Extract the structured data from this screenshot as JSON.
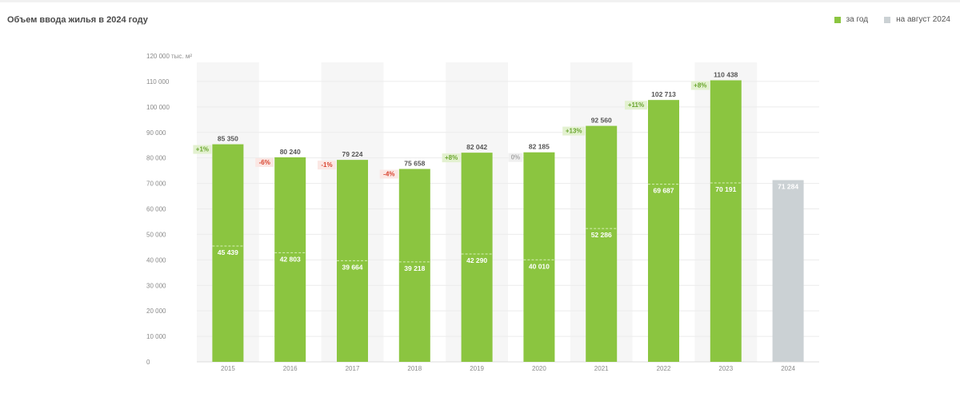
{
  "title": "Объем ввода жилья в 2024 году",
  "legend": {
    "year_label": "за год",
    "year_color": "#8bc540",
    "august_label": "на август 2024",
    "august_color": "#cbd1d4"
  },
  "chart_data": {
    "type": "bar",
    "unit_label": "тыс. м²",
    "ylim": [
      0,
      120000
    ],
    "y_ticks": [
      {
        "value": 0,
        "label": "0"
      },
      {
        "value": 10000,
        "label": "10 000"
      },
      {
        "value": 20000,
        "label": "20 000"
      },
      {
        "value": 30000,
        "label": "30 000"
      },
      {
        "value": 40000,
        "label": "40 000"
      },
      {
        "value": 50000,
        "label": "50 000"
      },
      {
        "value": 60000,
        "label": "60 000"
      },
      {
        "value": 70000,
        "label": "70 000"
      },
      {
        "value": 80000,
        "label": "80 000"
      },
      {
        "value": 90000,
        "label": "90 000"
      },
      {
        "value": 100000,
        "label": "100 000"
      },
      {
        "value": 110000,
        "label": "110 000"
      },
      {
        "value": 120000,
        "label": "120 000"
      }
    ],
    "categories": [
      "2015",
      "2016",
      "2017",
      "2018",
      "2019",
      "2020",
      "2021",
      "2022",
      "2023",
      "2024"
    ],
    "series": [
      {
        "name": "за год",
        "values": [
          85350,
          80240,
          79224,
          75658,
          82042,
          82185,
          92560,
          102713,
          110438,
          null
        ],
        "labels": [
          "85 350",
          "80 240",
          "79 224",
          "75 658",
          "82 042",
          "82 185",
          "92 560",
          "102 713",
          "110 438",
          ""
        ]
      },
      {
        "name": "на август 2024",
        "values": [
          45439,
          42803,
          39664,
          39218,
          42290,
          40010,
          52286,
          69687,
          70191,
          71284
        ],
        "labels": [
          "45 439",
          "42 803",
          "39 664",
          "39 218",
          "42 290",
          "40 010",
          "52 286",
          "69 687",
          "70 191",
          "71 284"
        ]
      }
    ],
    "changes": [
      {
        "label": "+1%",
        "dir": "up"
      },
      {
        "label": "-6%",
        "dir": "down"
      },
      {
        "label": "-1%",
        "dir": "down"
      },
      {
        "label": "-4%",
        "dir": "down"
      },
      {
        "label": "+8%",
        "dir": "up"
      },
      {
        "label": "0%",
        "dir": "flat"
      },
      {
        "label": "+13%",
        "dir": "up"
      },
      {
        "label": "+11%",
        "dir": "up"
      },
      {
        "label": "+8%",
        "dir": "up"
      },
      {
        "label": "",
        "dir": "none"
      }
    ],
    "grid": true,
    "legend_position": "top-right"
  }
}
